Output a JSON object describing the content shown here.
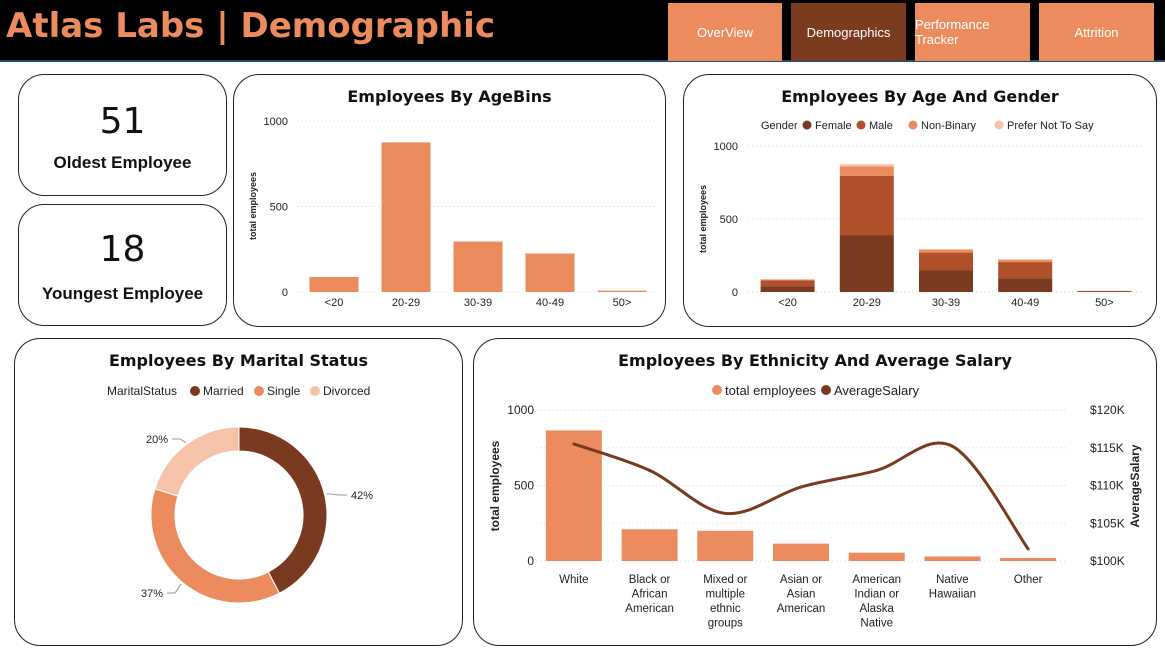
{
  "header": {
    "title": "Atlas Labs | Demographic",
    "nav": [
      {
        "label": "OverView",
        "bg": "#ec8c5e"
      },
      {
        "label": "Demographics",
        "bg": "#7b3b1f"
      },
      {
        "label": "Performance Tracker",
        "bg": "#ec8c5e"
      },
      {
        "label": "Attrition",
        "bg": "#ec8c5e"
      }
    ]
  },
  "colors": {
    "accent": "#ec8c5e",
    "female": "#7a3a1f",
    "male": "#b0502a",
    "nonbinary": "#ec8c5e",
    "prefer_not": "#f4c3a8",
    "married": "#7a3a1f",
    "single": "#ec8c5e",
    "divorced": "#f4c3a8",
    "line": "#7a3a1f"
  },
  "kpis": {
    "oldest": {
      "value": "51",
      "label": "Oldest Employee"
    },
    "youngest": {
      "value": "18",
      "label": "Youngest Employee"
    }
  },
  "chart_data": [
    {
      "id": "agebins",
      "type": "bar",
      "title": "Employees By AgeBins",
      "ylabel": "total employees",
      "ylim": [
        0,
        1000
      ],
      "yticks": [
        0,
        500,
        1000
      ],
      "categories": [
        "<20",
        "20-29",
        "30-39",
        "40-49",
        "50>"
      ],
      "values": [
        88,
        875,
        295,
        225,
        8
      ]
    },
    {
      "id": "agegender",
      "type": "bar",
      "stacked": true,
      "title": "Employees By Age And Gender",
      "ylabel": "total employees",
      "legend_title": "Gender",
      "ylim": [
        0,
        1000
      ],
      "yticks": [
        0,
        500,
        1000
      ],
      "categories": [
        "<20",
        "20-29",
        "30-39",
        "40-49",
        "50>"
      ],
      "series": [
        {
          "name": "Female",
          "values": [
            40,
            390,
            150,
            95,
            4
          ]
        },
        {
          "name": "Male",
          "values": [
            40,
            405,
            120,
            110,
            3
          ]
        },
        {
          "name": "Non-Binary",
          "values": [
            5,
            65,
            20,
            15,
            1
          ]
        },
        {
          "name": "Prefer Not To Say",
          "values": [
            3,
            15,
            5,
            5,
            0
          ]
        }
      ]
    },
    {
      "id": "marital",
      "type": "pie",
      "donut": true,
      "title": "Employees By Marital Status",
      "legend_title": "MaritalStatus",
      "labels": [
        "Married",
        "Single",
        "Divorced"
      ],
      "values": [
        42,
        37,
        20
      ],
      "value_labels": [
        "42%",
        "37%",
        "20%"
      ]
    },
    {
      "id": "ethnicity",
      "type": "bar",
      "title": "Employees By Ethnicity And Average Salary",
      "ylabel": "total employees",
      "y2label": "AverageSalary",
      "ylim": [
        0,
        1000
      ],
      "yticks": [
        0,
        500,
        1000
      ],
      "y2lim": [
        100000,
        120000
      ],
      "y2ticks": [
        "$100K",
        "$105K",
        "$110K",
        "$115K",
        "$120K"
      ],
      "categories": [
        [
          "White"
        ],
        [
          "Black or",
          "African",
          "American"
        ],
        [
          "Mixed or",
          "multiple",
          "ethnic",
          "groups"
        ],
        [
          "Asian or",
          "Asian",
          "American"
        ],
        [
          "American",
          "Indian or",
          "Alaska",
          "Native"
        ],
        [
          "Native",
          "Hawaiian"
        ],
        [
          "Other"
        ]
      ],
      "series": [
        {
          "name": "total employees",
          "values": [
            865,
            210,
            200,
            115,
            55,
            30,
            20
          ]
        },
        {
          "name": "AverageSalary",
          "values": [
            115500,
            112000,
            106300,
            109800,
            112000,
            115200,
            101600
          ]
        }
      ]
    }
  ]
}
